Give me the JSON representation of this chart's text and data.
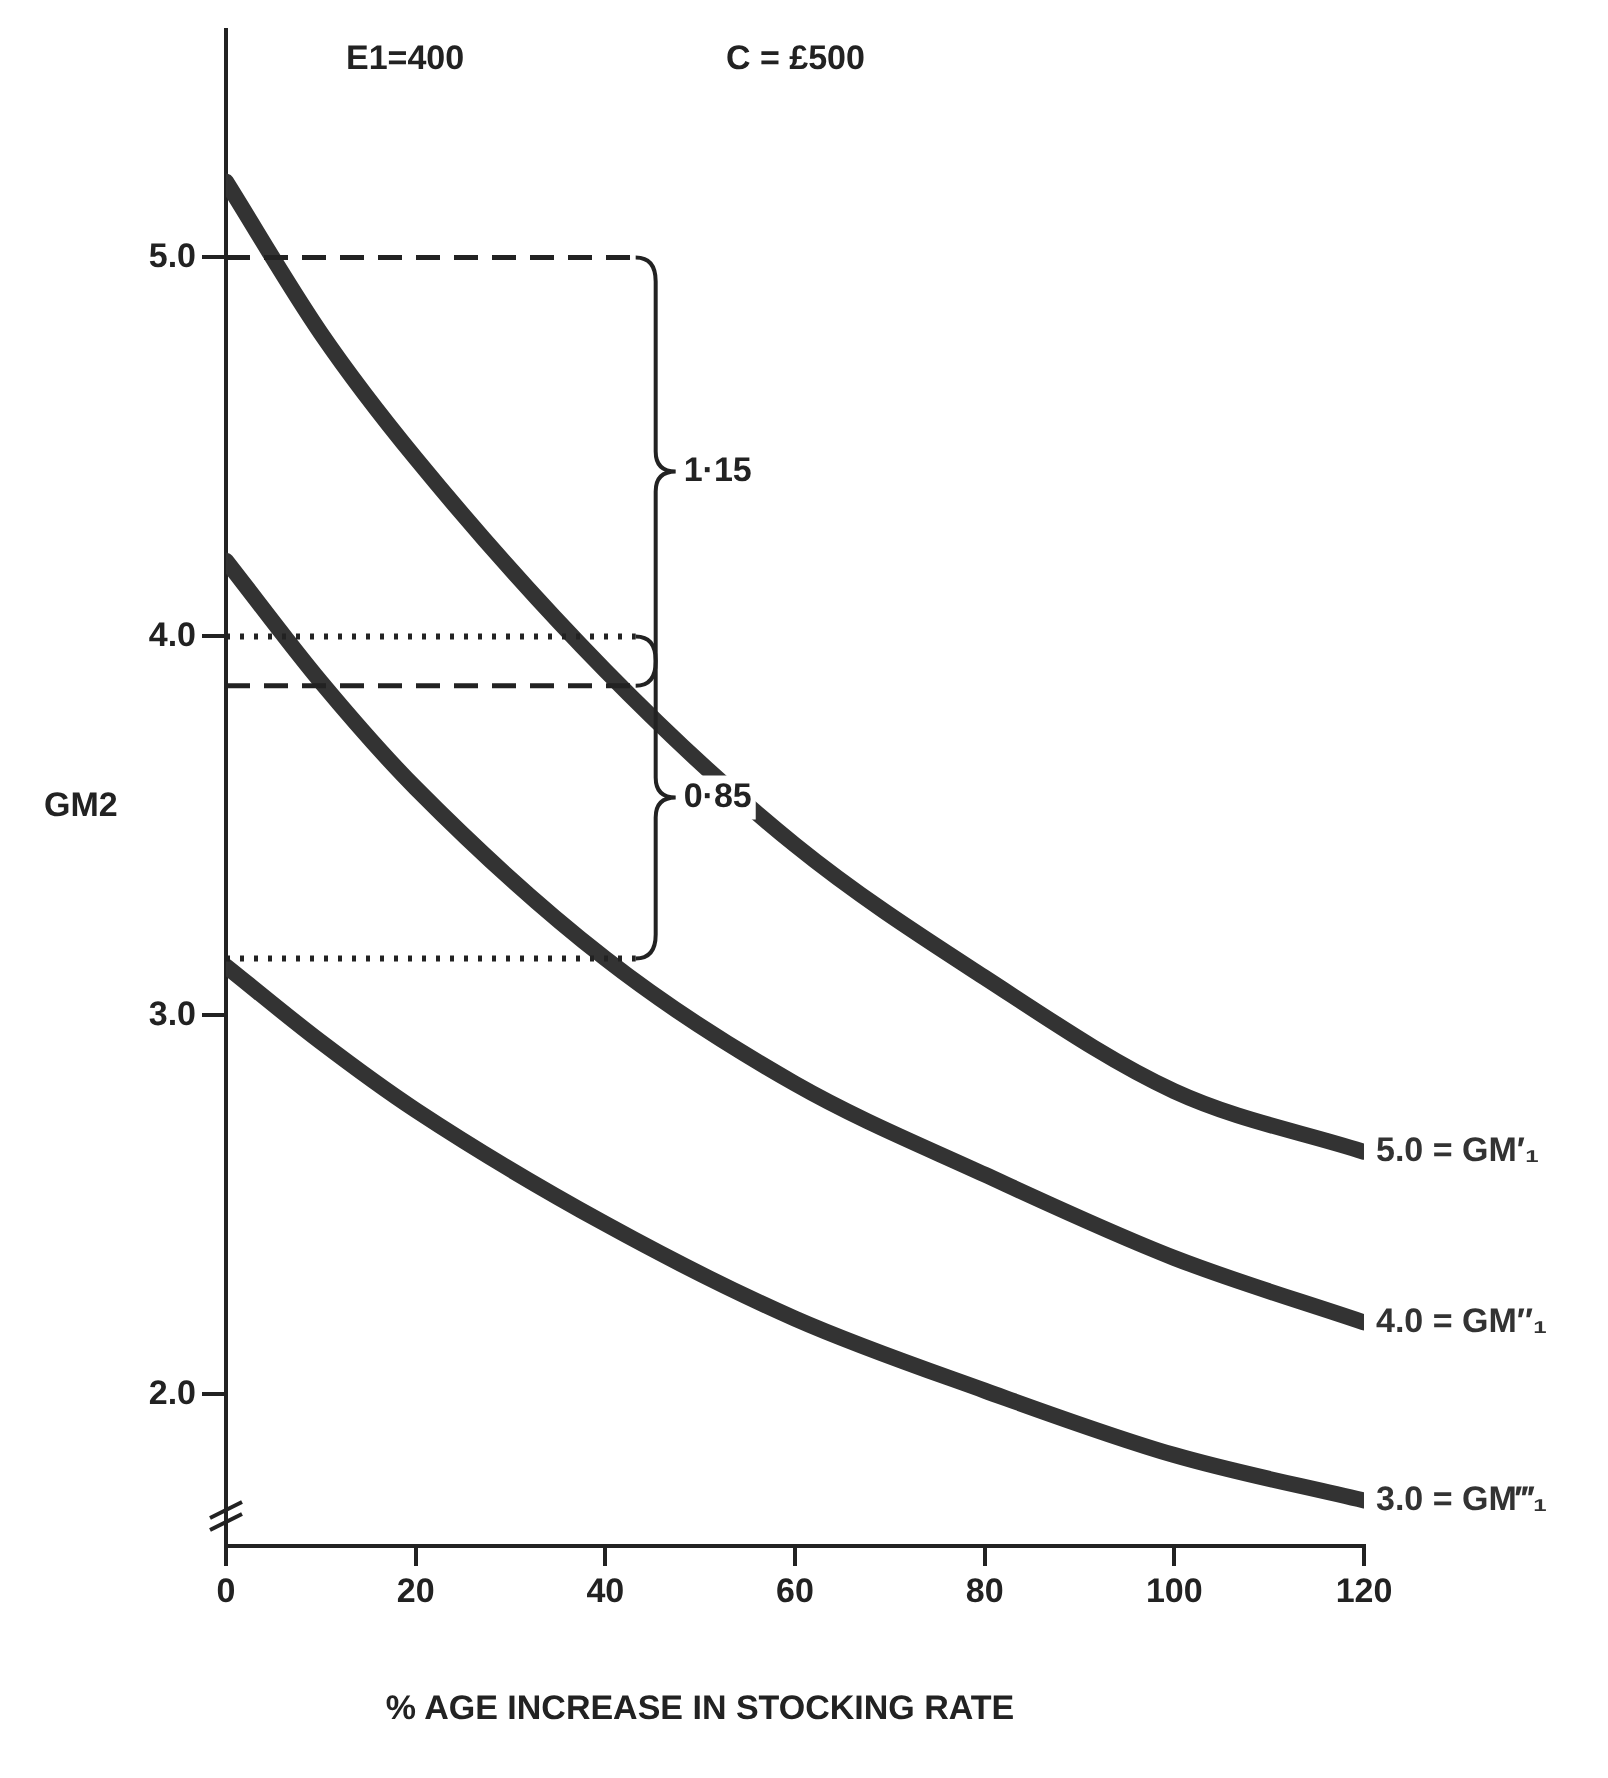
{
  "chart_data": {
    "type": "line",
    "xlabel": "% AGE INCREASE IN STOCKING RATE",
    "ylabel": "GM2",
    "x": [
      0,
      10,
      20,
      40,
      60,
      80,
      100,
      120
    ],
    "series": [
      {
        "name": "5.0 = GM′₁",
        "color": "#333333",
        "values": [
          5.2,
          4.8,
          4.47,
          3.91,
          3.45,
          3.1,
          2.8,
          2.64
        ]
      },
      {
        "name": "4.0 = GM″₁",
        "color": "#333333",
        "values": [
          4.2,
          3.88,
          3.6,
          3.15,
          2.82,
          2.58,
          2.36,
          2.19
        ]
      },
      {
        "name": "3.0 = GM‴₁",
        "color": "#333333",
        "values": [
          3.13,
          2.93,
          2.75,
          2.45,
          2.2,
          2.01,
          1.84,
          1.72
        ]
      }
    ],
    "xlim": [
      0,
      120
    ],
    "xticks": [
      0,
      20,
      40,
      60,
      80,
      100,
      120
    ],
    "ylim": [
      1.6,
      5.6
    ],
    "yticks": [
      {
        "value": 2,
        "label": "2.0"
      },
      {
        "value": 3,
        "label": "3.0"
      },
      {
        "value": 4,
        "label": "4.0"
      },
      {
        "value": 5,
        "label": "5.0"
      }
    ],
    "ref_lines": [
      {
        "axis": "y",
        "value": 5.0,
        "line_style": "dashed"
      },
      {
        "axis": "y",
        "value": 3.87,
        "line_style": "dashed"
      },
      {
        "axis": "y",
        "value": 4.0,
        "line_style": "dotted"
      },
      {
        "axis": "y",
        "value": 3.15,
        "line_style": "dotted"
      }
    ],
    "annotations": [
      "1·15",
      "0·85",
      "E1=400",
      "C = £500"
    ],
    "grid": false,
    "legend": false,
    "marker": "none",
    "line_style": "solid"
  }
}
